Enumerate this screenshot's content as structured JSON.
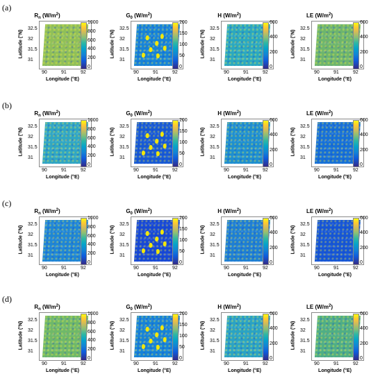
{
  "figure": {
    "rows": [
      {
        "label": "(a)"
      },
      {
        "label": "(b)"
      },
      {
        "label": "(c)"
      },
      {
        "label": "(d)"
      }
    ],
    "panels": [
      {
        "title_main": "R",
        "title_sub": "n",
        "title_unit": " (W/m",
        "title_sup": "2",
        "title_close": ")",
        "cbar_ticks": [
          "1000",
          "800",
          "600",
          "400",
          "200",
          "0"
        ]
      },
      {
        "title_main": "G",
        "title_sub": "0",
        "title_unit": " (W/m",
        "title_sup": "2",
        "title_close": ")",
        "cbar_ticks": [
          "200",
          "150",
          "100",
          "50",
          "0"
        ]
      },
      {
        "title_main": "H",
        "title_sub": "",
        "title_unit": " (W/m",
        "title_sup": "2",
        "title_close": ")",
        "cbar_ticks": [
          "600",
          "400",
          "200",
          "0"
        ]
      },
      {
        "title_main": "LE",
        "title_sub": "",
        "title_unit": " (W/m",
        "title_sup": "2",
        "title_close": ")",
        "cbar_ticks": [
          "600",
          "400",
          "200",
          "0"
        ]
      }
    ],
    "y_ticks": [
      "32.5",
      "32",
      "31.5",
      "31"
    ],
    "x_ticks": [
      "90",
      "91",
      "92"
    ],
    "ylabel": "Latitude (°N)",
    "xlabel": "Longitude (°E)",
    "colormap": [
      "#352a87",
      "#0f5cdd",
      "#06a4ca",
      "#87bf77",
      "#fec832",
      "#f9fb0e"
    ]
  }
}
